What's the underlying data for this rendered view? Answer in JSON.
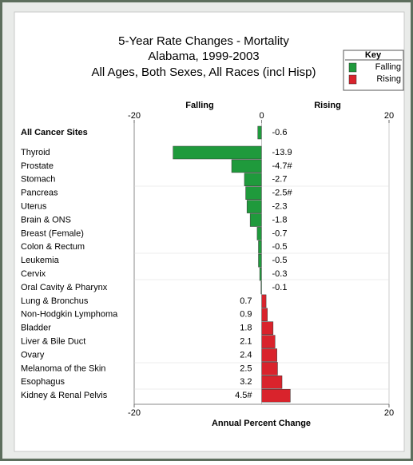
{
  "chart_data": {
    "type": "bar",
    "title": [
      "5-Year Rate Changes - Mortality",
      "Alabama, 1999-2003",
      "All Ages, Both Sexes, All Races (incl Hisp)"
    ],
    "categories": [
      "All Cancer Sites",
      "Thyroid",
      "Prostate",
      "Stomach",
      "Pancreas",
      "Uterus",
      "Brain & ONS",
      "Breast (Female)",
      "Colon & Rectum",
      "Leukemia",
      "Cervix",
      "Oral Cavity & Pharynx",
      "Lung & Bronchus",
      "Non-Hodgkin Lymphoma",
      "Bladder",
      "Liver & Bile Duct",
      "Ovary",
      "Melanoma of the Skin",
      "Esophagus",
      "Kidney & Renal Pelvis"
    ],
    "values": [
      -0.6,
      -13.9,
      -4.7,
      -2.7,
      -2.5,
      -2.3,
      -1.8,
      -0.7,
      -0.5,
      -0.5,
      -0.3,
      -0.1,
      0.7,
      0.9,
      1.8,
      2.1,
      2.4,
      2.5,
      3.2,
      4.5
    ],
    "value_labels": [
      "-0.6",
      "-13.9",
      "-4.7#",
      "-2.7",
      "-2.5#",
      "-2.3",
      "-1.8",
      "-0.7",
      "-0.5",
      "-0.5",
      "-0.3",
      "-0.1",
      "0.7",
      "0.9",
      "1.8",
      "2.1",
      "2.4",
      "2.5",
      "3.2",
      "4.5#"
    ],
    "xlim": [
      -20,
      20
    ],
    "xticks": [
      -20,
      0,
      20
    ],
    "bottom_xticks": [
      -20,
      20
    ],
    "xlabel": "Annual Percent Change",
    "side_labels": [
      "Falling",
      "Rising"
    ],
    "legend_title": "Key",
    "legend": [
      {
        "name": "Falling",
        "color": "#1f9a3c"
      },
      {
        "name": "Rising",
        "color": "#d9232c"
      }
    ]
  }
}
